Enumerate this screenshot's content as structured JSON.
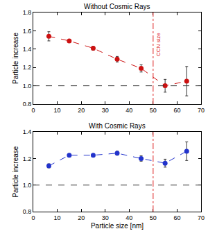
{
  "chart_data": [
    {
      "type": "scatter",
      "title": "Without Cosmic Rays",
      "y_label": "Particle increase",
      "annotations": [
        {
          "text": "CCN size",
          "x": 50,
          "y": 1.45
        }
      ],
      "reference_lines": {
        "x": 50,
        "y": 1.0
      },
      "xlim": [
        0,
        70
      ],
      "xticks": [
        0,
        10,
        20,
        30,
        40,
        50,
        60,
        70
      ],
      "ylim": [
        0.8,
        1.8
      ],
      "yticks": [
        0.8,
        {
          "value": 1.0,
          "label": "1.0"
        },
        1.2,
        1.4,
        1.6,
        1.8
      ],
      "series": [
        {
          "name": "Without Cosmic Rays",
          "color": "#cc1111",
          "marker": "circle",
          "line_style": "dash",
          "x": [
            6.5,
            15,
            25,
            35,
            45,
            55,
            64
          ],
          "values": [
            1.54,
            1.49,
            1.41,
            1.29,
            1.19,
            1.0,
            1.05
          ],
          "error": [
            0.05,
            0.01,
            0.02,
            0.03,
            0.04,
            0.07,
            0.16
          ]
        }
      ]
    },
    {
      "type": "scatter",
      "title": "With Cosmic Rays",
      "x_label": "Particle size [nm]",
      "y_label": "Particle increase",
      "reference_lines": {
        "x": 50,
        "y": 1.0
      },
      "xlim": [
        0,
        70
      ],
      "xticks": [
        0,
        10,
        20,
        30,
        40,
        50,
        60,
        70
      ],
      "ylim": [
        0.8,
        1.4
      ],
      "yticks": [
        0.8,
        {
          "value": 1.0,
          "label": "1.0"
        },
        1.2,
        1.4
      ],
      "series": [
        {
          "name": "With Cosmic Rays",
          "color": "#2233cc",
          "marker": "circle",
          "line_style": "dash",
          "x": [
            6.5,
            15,
            25,
            35,
            45,
            55,
            64
          ],
          "values": [
            1.145,
            1.225,
            1.225,
            1.24,
            1.2,
            1.165,
            1.255
          ],
          "error": [
            0.015,
            0.01,
            0.01,
            0.015,
            0.02,
            0.03,
            0.07
          ]
        }
      ]
    }
  ]
}
